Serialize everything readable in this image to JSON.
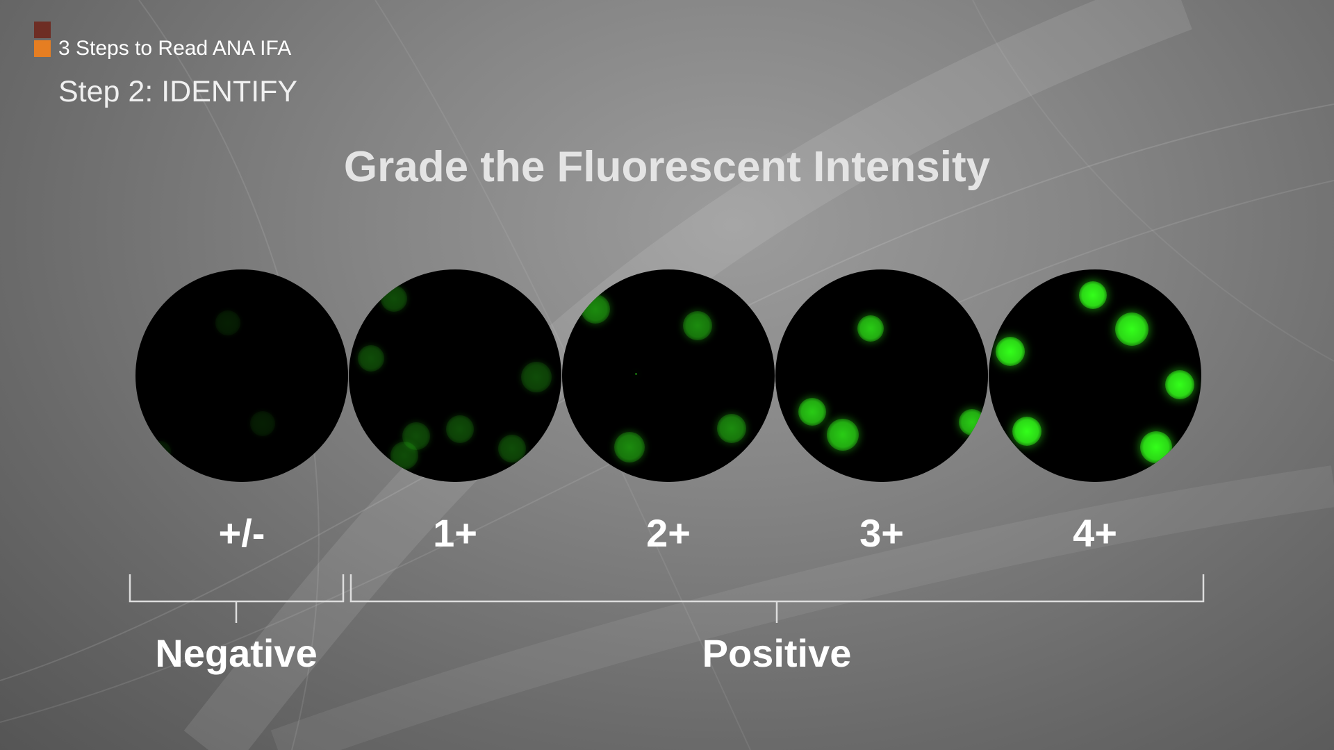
{
  "series": {
    "title": "3 Steps to Read ANA IFA",
    "marker_colors": [
      "#6e2d24",
      "#e67e22"
    ]
  },
  "step": {
    "title": "Step 2: IDENTIFY"
  },
  "heading": "Grade the Fluorescent Intensity",
  "fluorescence_color": "#33ff1a",
  "grades": [
    {
      "label": "+/-",
      "intensity": 0.12
    },
    {
      "label": "1+",
      "intensity": 0.3
    },
    {
      "label": "2+",
      "intensity": 0.55
    },
    {
      "label": "3+",
      "intensity": 0.8
    },
    {
      "label": "4+",
      "intensity": 1.0
    }
  ],
  "groups": [
    {
      "label": "Negative"
    },
    {
      "label": "Positive"
    }
  ]
}
